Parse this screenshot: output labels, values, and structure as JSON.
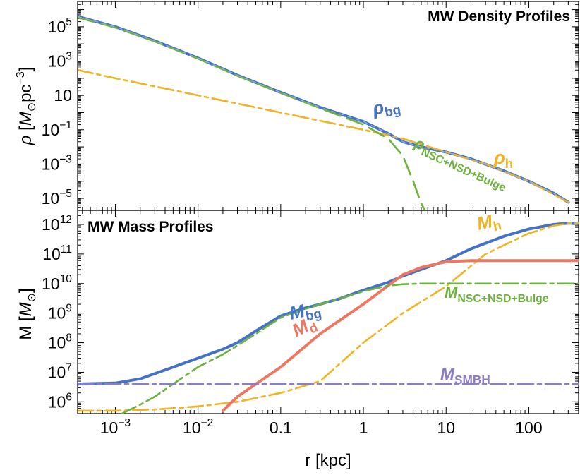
{
  "chart_data": [
    {
      "type": "line",
      "title": "MW Density Profiles",
      "ylabel": "ρ [M⊙pc−3]",
      "x_scale": "log",
      "y_scale": "log",
      "xlim": [
        0.00035,
        400
      ],
      "ylim": [
        2e-06,
        3000000
      ],
      "yticks": [
        {
          "value": 100000,
          "base": "10",
          "exp": "5"
        },
        {
          "value": 1000,
          "base": "10",
          "exp": "3"
        },
        {
          "value": 10,
          "base": "10",
          "exp": ""
        },
        {
          "value": 0.1,
          "base": "10",
          "exp": "−1"
        },
        {
          "value": 0.001,
          "base": "10",
          "exp": "−3"
        },
        {
          "value": 1e-05,
          "base": "10",
          "exp": "−5"
        }
      ],
      "series": [
        {
          "name": "ρbg",
          "color": "#4472c4",
          "style": "solid",
          "x": [
            0.00035,
            0.001,
            0.003,
            0.01,
            0.03,
            0.1,
            0.3,
            1,
            2,
            3,
            5,
            10,
            20,
            50,
            100,
            200,
            300
          ],
          "y": [
            400000,
            100000,
            15000,
            1500,
            150,
            15,
            2,
            0.3,
            0.06,
            0.02,
            0.01,
            0.005,
            0.002,
            0.0004,
            0.0001,
            2e-05,
            6e-06
          ]
        },
        {
          "name": "ρh",
          "color": "#f0b323",
          "style": "dashdot",
          "x": [
            0.00035,
            0.001,
            0.01,
            0.1,
            1,
            3,
            10,
            30,
            100,
            300
          ],
          "y": [
            300,
            100,
            10,
            1,
            0.1,
            0.03,
            0.005,
            0.001,
            0.0001,
            6e-06
          ]
        },
        {
          "name": "ρNSC+NSD+Bulge",
          "color": "#6cb33e",
          "style": "longdash",
          "x": [
            0.00035,
            0.001,
            0.003,
            0.01,
            0.03,
            0.1,
            0.3,
            1,
            2,
            3,
            4,
            5,
            6
          ],
          "y": [
            350000,
            90000,
            14000,
            1400,
            140,
            14,
            1.8,
            0.2,
            0.03,
            0.003,
            0.0001,
            5e-06,
            1e-06
          ]
        }
      ],
      "labels": [
        {
          "base": "ρ",
          "sub": "bg",
          "color": "#4472c4"
        },
        {
          "base": "ρ",
          "sub": "NSC+NSD+Bulge",
          "color": "#6cb33e"
        },
        {
          "base": "ρ",
          "sub": "h",
          "color": "#f0b323"
        }
      ]
    },
    {
      "type": "line",
      "title": "MW Mass Profiles",
      "ylabel": "M [M⊙]",
      "xlabel": "r [kpc]",
      "x_scale": "log",
      "y_scale": "log",
      "xlim": [
        0.00035,
        400
      ],
      "ylim": [
        400000,
        3000000000000
      ],
      "xticks": [
        {
          "value": 0.001,
          "base": "10",
          "exp": "−3"
        },
        {
          "value": 0.01,
          "base": "10",
          "exp": "−2"
        },
        {
          "value": 0.1,
          "base": "0.1",
          "exp": ""
        },
        {
          "value": 1,
          "base": "1",
          "exp": ""
        },
        {
          "value": 10,
          "base": "10",
          "exp": ""
        },
        {
          "value": 100,
          "base": "100",
          "exp": ""
        }
      ],
      "yticks": [
        {
          "value": 1000000000000,
          "base": "10",
          "exp": "12"
        },
        {
          "value": 100000000000,
          "base": "10",
          "exp": "11"
        },
        {
          "value": 10000000000,
          "base": "10",
          "exp": "10"
        },
        {
          "value": 1000000000,
          "base": "10",
          "exp": "9"
        },
        {
          "value": 100000000,
          "base": "10",
          "exp": "8"
        },
        {
          "value": 10000000,
          "base": "10",
          "exp": "7"
        },
        {
          "value": 1000000,
          "base": "10",
          "exp": "6"
        }
      ],
      "series": [
        {
          "name": "Mbg",
          "color": "#4472c4",
          "style": "solid",
          "x": [
            0.00035,
            0.001,
            0.002,
            0.003,
            0.005,
            0.01,
            0.02,
            0.03,
            0.05,
            0.1,
            0.2,
            0.3,
            0.5,
            1,
            2,
            3,
            5,
            10,
            20,
            50,
            100,
            200,
            300,
            400
          ],
          "y": [
            4000000,
            4300000,
            6000000,
            9000000,
            15000000,
            30000000,
            60000000,
            100000000,
            250000000,
            800000000,
            1500000000,
            2000000000,
            3000000000,
            6000000000,
            11000000000,
            18000000000,
            30000000000,
            60000000000,
            150000000000,
            400000000000,
            700000000000,
            1000000000000,
            1100000000000,
            1100000000000
          ]
        },
        {
          "name": "Mh",
          "color": "#f0b323",
          "style": "dashdot",
          "x": [
            0.00035,
            0.001,
            0.003,
            0.01,
            0.03,
            0.1,
            0.3,
            1,
            3,
            10,
            30,
            100,
            200,
            300,
            400
          ],
          "y": [
            500000,
            500000,
            550000,
            700000,
            1000000,
            2000000,
            5000000,
            100000000,
            1000000000,
            8000000000,
            100000000000,
            500000000000,
            900000000000,
            1100000000000,
            1100000000000
          ]
        },
        {
          "name": "Md",
          "color": "#ee7762",
          "style": "solid",
          "x": [
            0.02,
            0.03,
            0.05,
            0.1,
            0.3,
            1,
            3,
            5,
            10,
            20,
            50,
            100,
            400
          ],
          "y": [
            500000,
            1500000,
            4000000,
            15000000,
            200000000,
            2000000000,
            20000000000,
            35000000000,
            55000000000,
            60000000000,
            60000000000,
            60000000000,
            60000000000
          ]
        },
        {
          "name": "MNSC+NSD+Bulge",
          "color": "#6cb33e",
          "style": "dashdot",
          "x": [
            0.0012,
            0.002,
            0.003,
            0.005,
            0.01,
            0.02,
            0.03,
            0.05,
            0.1,
            0.2,
            0.3,
            0.5,
            1,
            2,
            3,
            5,
            10,
            100,
            400
          ],
          "y": [
            400000,
            800000,
            1500000,
            4000000,
            15000000,
            40000000,
            80000000,
            200000000,
            700000000,
            1400000000,
            2000000000,
            3000000000,
            5500000000,
            8500000000,
            9500000000,
            10000000000,
            10000000000,
            10000000000,
            10000000000
          ]
        },
        {
          "name": "MSMBH",
          "color": "#8b7cc8",
          "style": "dashdot",
          "x": [
            0.00035,
            400
          ],
          "y": [
            4000000,
            4000000
          ]
        }
      ],
      "labels": [
        {
          "base": "M",
          "sub": "h",
          "color": "#f0b323"
        },
        {
          "base": "M",
          "sub": "bg",
          "color": "#4472c4"
        },
        {
          "base": "M",
          "sub": "NSC+NSD+Bulge",
          "color": "#6cb33e"
        },
        {
          "base": "M",
          "sub": "d",
          "color": "#ee7762"
        },
        {
          "base": "M",
          "sub": "SMBH",
          "color": "#8b7cc8"
        }
      ]
    }
  ]
}
